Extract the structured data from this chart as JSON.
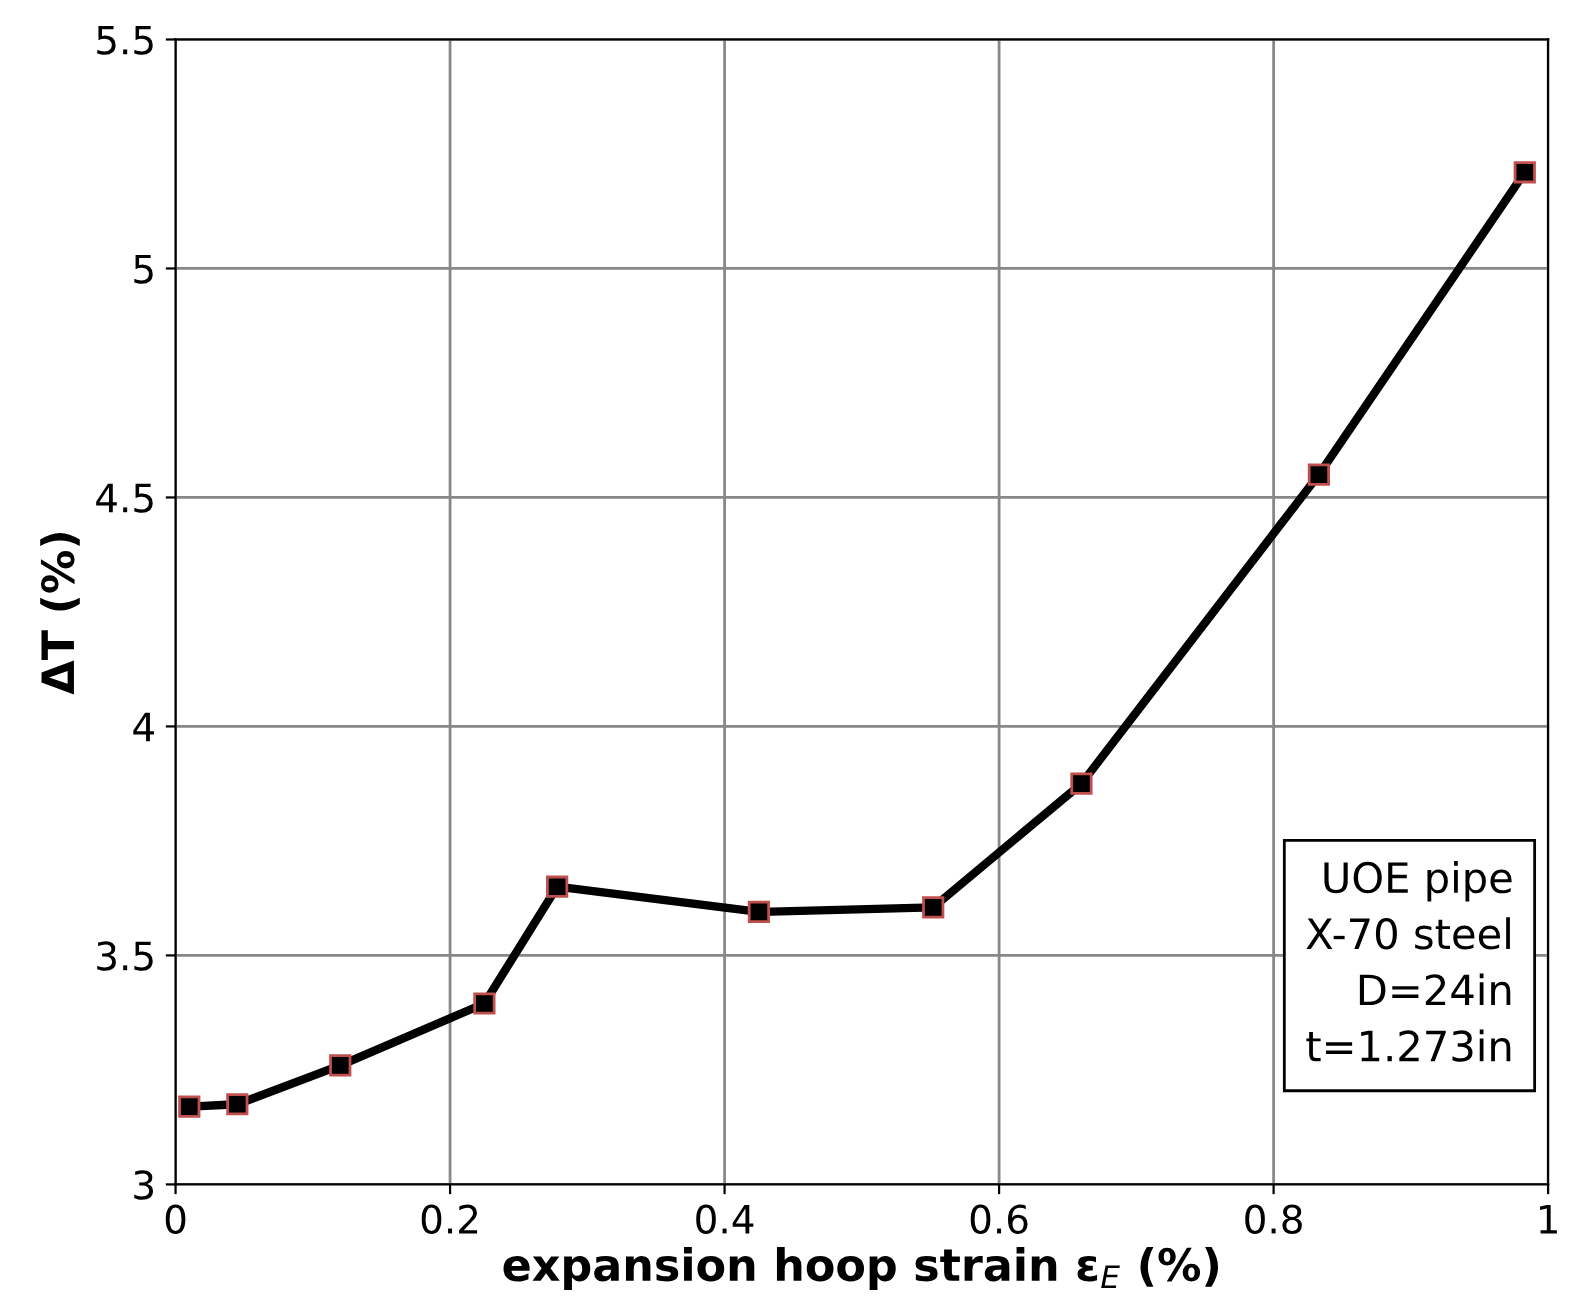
{
  "chart_data": {
    "type": "line",
    "xlabel": "expansion hoop strain ε$_{E}$ (%)",
    "ylabel": "ΔT (%)",
    "x": [
      0.01,
      0.045,
      0.12,
      0.225,
      0.278,
      0.425,
      0.552,
      0.66,
      0.833,
      0.983
    ],
    "series": [
      {
        "color": "#000000",
        "values": [
          3.17,
          3.175,
          3.26,
          3.395,
          3.65,
          3.595,
          3.605,
          3.875,
          4.55,
          5.21
        ]
      }
    ],
    "xlim": [
      0,
      1
    ],
    "xticks": [
      0,
      0.2,
      0.4,
      0.6,
      0.8,
      1
    ],
    "ylim": [
      3,
      5.5
    ],
    "yticks": [
      3,
      3.5,
      4,
      4.5,
      5,
      5.5
    ],
    "grid": true,
    "marker": "square",
    "line_style": "solid",
    "annotations": [
      "UOE pipe\nX-70 steel\nD=24in\nt=1.273in"
    ]
  }
}
